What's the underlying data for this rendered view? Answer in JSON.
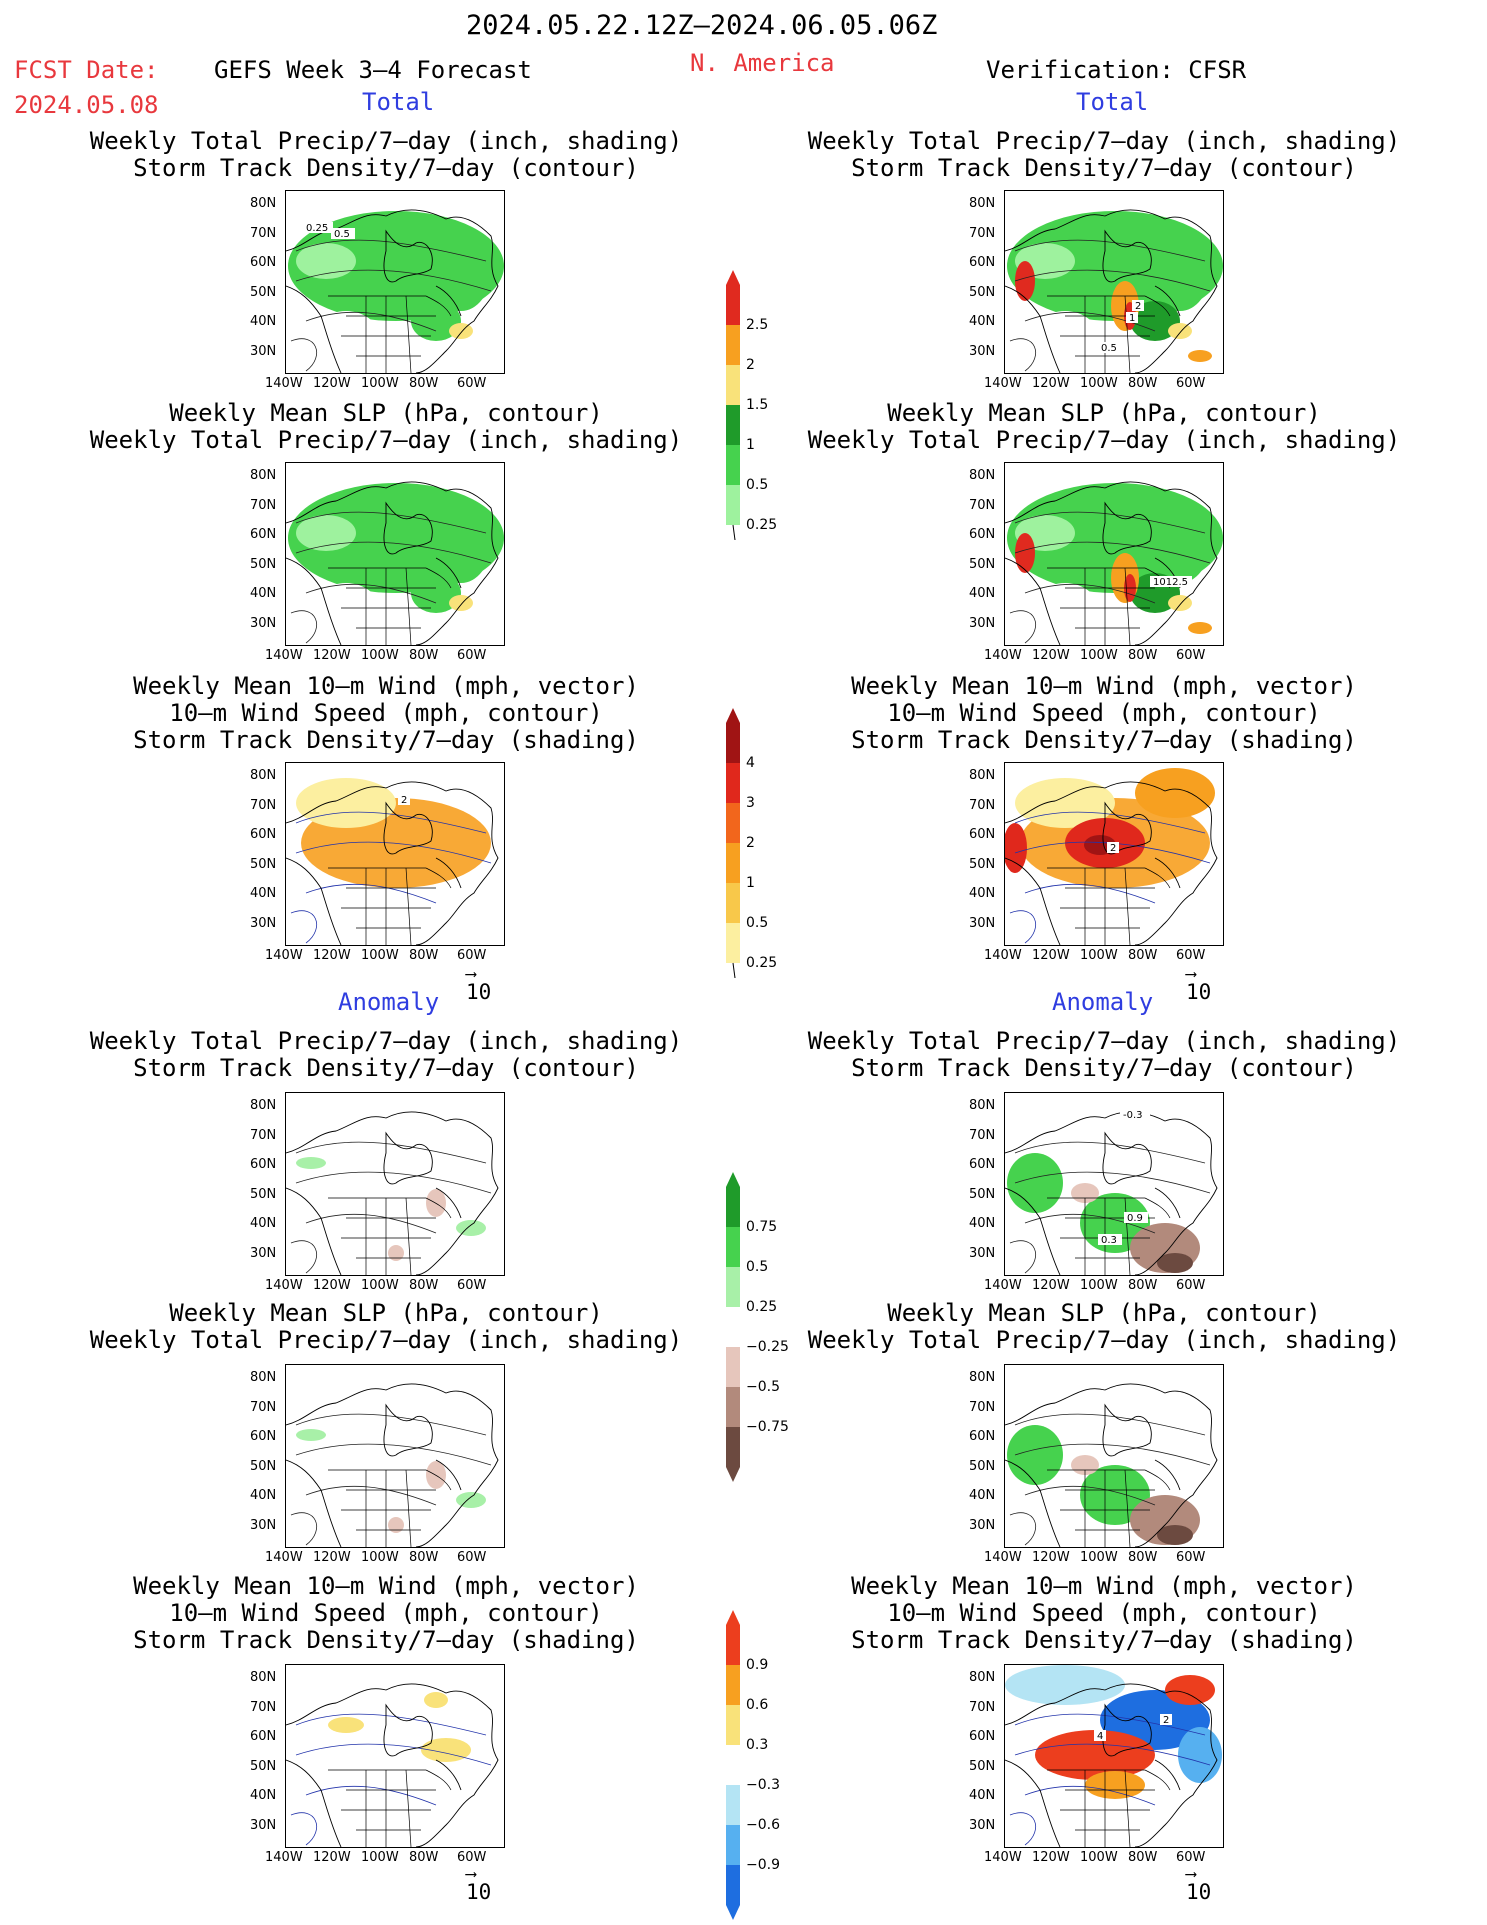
{
  "header": {
    "date_range": "2024.05.22.12Z–2024.06.05.06Z",
    "fcst_label": "FCST Date:",
    "fcst_date": "2024.05.08",
    "forecast_title": "GEFS Week 3–4 Forecast",
    "region": "N. America",
    "verification": "Verification: CFSR"
  },
  "sections": {
    "total_left": "Total",
    "total_right": "Total",
    "anomaly_left": "Anomaly",
    "anomaly_right": "Anomaly"
  },
  "panel_titles": {
    "precip_storm": [
      "Weekly Total Precip/7–day (inch, shading)",
      "Storm Track Density/7–day (contour)"
    ],
    "slp_precip": [
      "Weekly Mean SLP (hPa, contour)",
      "Weekly Total Precip/7–day (inch, shading)"
    ],
    "wind_storm": [
      "Weekly Mean 10–m Wind (mph, vector)",
      "10–m Wind Speed (mph, contour)",
      "Storm Track Density/7–day (shading)"
    ]
  },
  "axes": {
    "y_ticks": [
      "80N",
      "70N",
      "60N",
      "50N",
      "40N",
      "30N"
    ],
    "x_ticks": [
      "140W",
      "120W",
      "100W",
      "80W",
      "60W"
    ]
  },
  "vector_reference": "10",
  "colorbars": {
    "total_precip": {
      "ticks": [
        "2.5",
        "2",
        "1.5",
        "1",
        "0.5",
        "0.25"
      ],
      "colors": [
        "#e02a1f",
        "#f7a020",
        "#f9e27a",
        "#1f9b2a",
        "#46d24e",
        "#9ef29e"
      ]
    },
    "total_storm": {
      "ticks": [
        "4",
        "3",
        "2",
        "1",
        "0.5",
        "0.25"
      ],
      "colors": [
        "#a01414",
        "#e0281c",
        "#f2661c",
        "#f7a020",
        "#f8c84a",
        "#fcefa0"
      ]
    },
    "anom_precip": {
      "ticks": [
        "0.75",
        "0.5",
        "0.25",
        "−0.25",
        "−0.5",
        "−0.75"
      ],
      "colors": [
        "#1f9b2a",
        "#46d24e",
        "#a8f0a8",
        "#ffffff",
        "#e6c6bc",
        "#b28a7c",
        "#6c4a40"
      ]
    },
    "anom_storm": {
      "ticks": [
        "0.9",
        "0.6",
        "0.3",
        "−0.3",
        "−0.6",
        "−0.9"
      ],
      "colors": [
        "#ec3e1e",
        "#f7a020",
        "#f9e27a",
        "#ffffff",
        "#b4e4f4",
        "#56b0f0",
        "#1e6ee0"
      ]
    },
    "contour_labels": {
      "tp_fc": [
        "0.25",
        "0.5"
      ],
      "tp_cf": [
        "2",
        "1",
        "0.5"
      ],
      "slp_cf": "1012.5",
      "wind_fc": "2",
      "wind_cf": "2",
      "atp_cf": [
        "-0.3",
        "0.9",
        "0.3"
      ],
      "awind_cf": [
        "4",
        "2"
      ]
    }
  }
}
